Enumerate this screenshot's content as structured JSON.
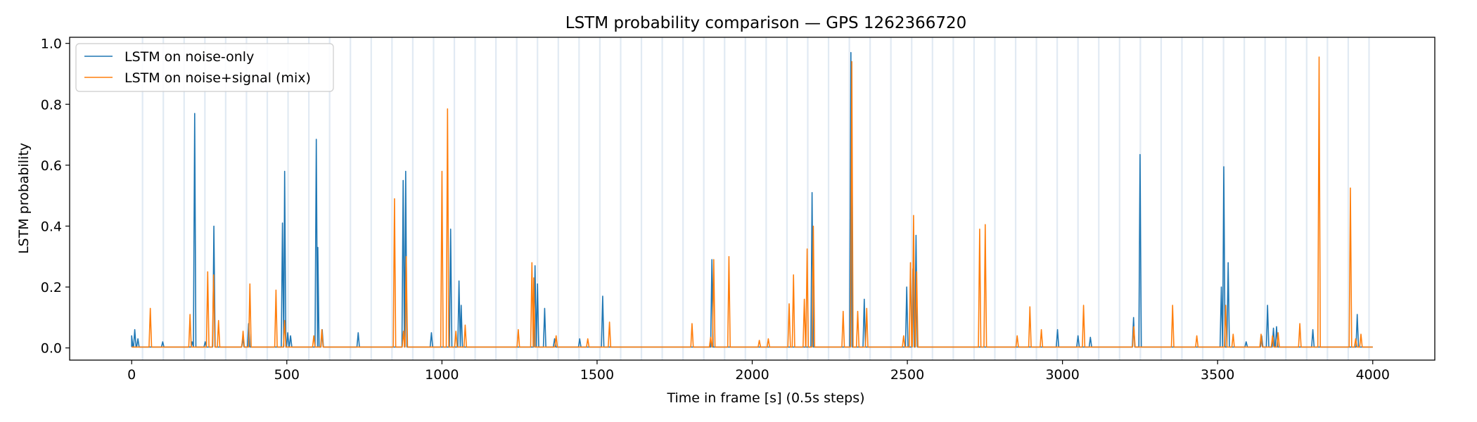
{
  "chart_data": {
    "type": "line",
    "title": "LSTM probability comparison — GPS 1262366720",
    "xlabel": "Time in frame [s] (0.5s steps)",
    "ylabel": "LSTM probability",
    "xlim": [
      -200,
      4200
    ],
    "ylim": [
      -0.04,
      1.02
    ],
    "xticks": [
      0,
      500,
      1000,
      1500,
      2000,
      2500,
      3000,
      3500,
      4000
    ],
    "yticks": [
      0.0,
      0.2,
      0.4,
      0.6,
      0.8,
      1.0
    ],
    "xtick_labels": [
      "0",
      "500",
      "1000",
      "1500",
      "2000",
      "2500",
      "3000",
      "3500",
      "4000"
    ],
    "ytick_labels": [
      "0.0",
      "0.2",
      "0.4",
      "0.6",
      "0.8",
      "1.0"
    ],
    "legend_position": "upper-left",
    "baseline": 0.003,
    "series": [
      {
        "name": "LSTM on noise-only",
        "color": "#1f77b4",
        "peaks": [
          [
            0,
            0.04
          ],
          [
            10,
            0.06
          ],
          [
            20,
            0.03
          ],
          [
            100,
            0.02
          ],
          [
            195,
            0.02
          ],
          [
            203,
            0.77
          ],
          [
            237,
            0.02
          ],
          [
            265,
            0.4
          ],
          [
            358,
            0.03
          ],
          [
            377,
            0.08
          ],
          [
            486,
            0.41
          ],
          [
            493,
            0.58
          ],
          [
            503,
            0.05
          ],
          [
            512,
            0.04
          ],
          [
            595,
            0.685
          ],
          [
            600,
            0.33
          ],
          [
            614,
            0.06
          ],
          [
            730,
            0.05
          ],
          [
            875,
            0.55
          ],
          [
            883,
            0.58
          ],
          [
            966,
            0.05
          ],
          [
            1028,
            0.39
          ],
          [
            1055,
            0.22
          ],
          [
            1062,
            0.14
          ],
          [
            1300,
            0.27
          ],
          [
            1308,
            0.21
          ],
          [
            1331,
            0.13
          ],
          [
            1363,
            0.03
          ],
          [
            1444,
            0.03
          ],
          [
            1518,
            0.17
          ],
          [
            1870,
            0.29
          ],
          [
            2193,
            0.51
          ],
          [
            2318,
            0.97
          ],
          [
            2361,
            0.16
          ],
          [
            2498,
            0.2
          ],
          [
            2518,
            0.26
          ],
          [
            2528,
            0.37
          ],
          [
            2984,
            0.06
          ],
          [
            3050,
            0.04
          ],
          [
            3090,
            0.035
          ],
          [
            3229,
            0.1
          ],
          [
            3250,
            0.635
          ],
          [
            3512,
            0.2
          ],
          [
            3520,
            0.595
          ],
          [
            3534,
            0.28
          ],
          [
            3592,
            0.02
          ],
          [
            3642,
            0.04
          ],
          [
            3661,
            0.14
          ],
          [
            3680,
            0.065
          ],
          [
            3690,
            0.07
          ],
          [
            3807,
            0.06
          ],
          [
            3950,
            0.11
          ]
        ]
      },
      {
        "name": "LSTM on noise+signal (mix)",
        "color": "#ff7f0e",
        "peaks": [
          [
            60,
            0.13
          ],
          [
            188,
            0.11
          ],
          [
            245,
            0.25
          ],
          [
            264,
            0.24
          ],
          [
            280,
            0.09
          ],
          [
            359,
            0.055
          ],
          [
            381,
            0.21
          ],
          [
            465,
            0.19
          ],
          [
            493,
            0.09
          ],
          [
            587,
            0.04
          ],
          [
            613,
            0.06
          ],
          [
            847,
            0.49
          ],
          [
            876,
            0.055
          ],
          [
            885,
            0.3
          ],
          [
            1000,
            0.58
          ],
          [
            1018,
            0.785
          ],
          [
            1045,
            0.055
          ],
          [
            1075,
            0.075
          ],
          [
            1246,
            0.06
          ],
          [
            1290,
            0.28
          ],
          [
            1296,
            0.23
          ],
          [
            1368,
            0.04
          ],
          [
            1470,
            0.03
          ],
          [
            1540,
            0.085
          ],
          [
            1806,
            0.08
          ],
          [
            1866,
            0.035
          ],
          [
            1876,
            0.29
          ],
          [
            1925,
            0.3
          ],
          [
            2023,
            0.025
          ],
          [
            2052,
            0.03
          ],
          [
            2119,
            0.145
          ],
          [
            2133,
            0.24
          ],
          [
            2168,
            0.16
          ],
          [
            2177,
            0.325
          ],
          [
            2197,
            0.4
          ],
          [
            2293,
            0.12
          ],
          [
            2321,
            0.94
          ],
          [
            2340,
            0.12
          ],
          [
            2369,
            0.13
          ],
          [
            2488,
            0.04
          ],
          [
            2510,
            0.28
          ],
          [
            2520,
            0.435
          ],
          [
            2530,
            0.25
          ],
          [
            2733,
            0.39
          ],
          [
            2751,
            0.405
          ],
          [
            2854,
            0.04
          ],
          [
            2895,
            0.135
          ],
          [
            2932,
            0.06
          ],
          [
            3068,
            0.14
          ],
          [
            3230,
            0.07
          ],
          [
            3355,
            0.14
          ],
          [
            3433,
            0.04
          ],
          [
            3526,
            0.14
          ],
          [
            3550,
            0.045
          ],
          [
            3640,
            0.045
          ],
          [
            3677,
            0.04
          ],
          [
            3695,
            0.05
          ],
          [
            3765,
            0.08
          ],
          [
            3827,
            0.955
          ],
          [
            3928,
            0.525
          ],
          [
            3945,
            0.03
          ],
          [
            3962,
            0.045
          ]
        ]
      }
    ]
  }
}
